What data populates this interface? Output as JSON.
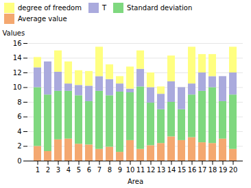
{
  "chart_data": {
    "type": "bar",
    "stacked": true,
    "xlabel": "Area",
    "ylabel": "Values",
    "categories": [
      1,
      2,
      3,
      4,
      5,
      6,
      7,
      8,
      9,
      10,
      11,
      12,
      13,
      14,
      15,
      16,
      17,
      18,
      19,
      20
    ],
    "series": [
      {
        "name": "Average value",
        "color": "#F4A870",
        "values": [
          2.0,
          1.3,
          2.9,
          3.0,
          2.3,
          2.2,
          1.6,
          1.9,
          1.2,
          2.8,
          1.6,
          2.1,
          2.4,
          3.3,
          2.8,
          3.2,
          2.5,
          2.4,
          3.0,
          1.6
        ]
      },
      {
        "name": "Standard deviation",
        "color": "#7FD87F",
        "values": [
          8.0,
          7.7,
          6.6,
          6.5,
          6.6,
          5.9,
          7.9,
          7.0,
          8.2,
          6.5,
          8.5,
          5.8,
          4.6,
          4.7,
          4.2,
          5.8,
          7.0,
          7.6,
          5.1,
          7.4
        ]
      },
      {
        "name": "T",
        "color": "#AAAADD",
        "values": [
          2.7,
          4.5,
          2.6,
          1.0,
          1.4,
          2.1,
          2.0,
          2.2,
          1.1,
          0.5,
          2.4,
          2.1,
          2.1,
          2.8,
          3.0,
          1.5,
          2.5,
          1.5,
          3.4,
          3.0
        ]
      },
      {
        "name": "degree of freedom",
        "color": "#FFFF80",
        "values": [
          1.4,
          0.0,
          2.9,
          3.0,
          2.0,
          2.0,
          4.0,
          2.0,
          1.0,
          3.0,
          2.5,
          2.0,
          1.0,
          3.5,
          0.0,
          5.0,
          2.5,
          3.0,
          0.0,
          3.5
        ]
      }
    ],
    "ylim": [
      0,
      16
    ],
    "yticks": [
      0,
      2,
      4,
      6,
      8,
      10,
      12,
      14,
      16
    ],
    "grid": true,
    "legend": "upper left"
  }
}
